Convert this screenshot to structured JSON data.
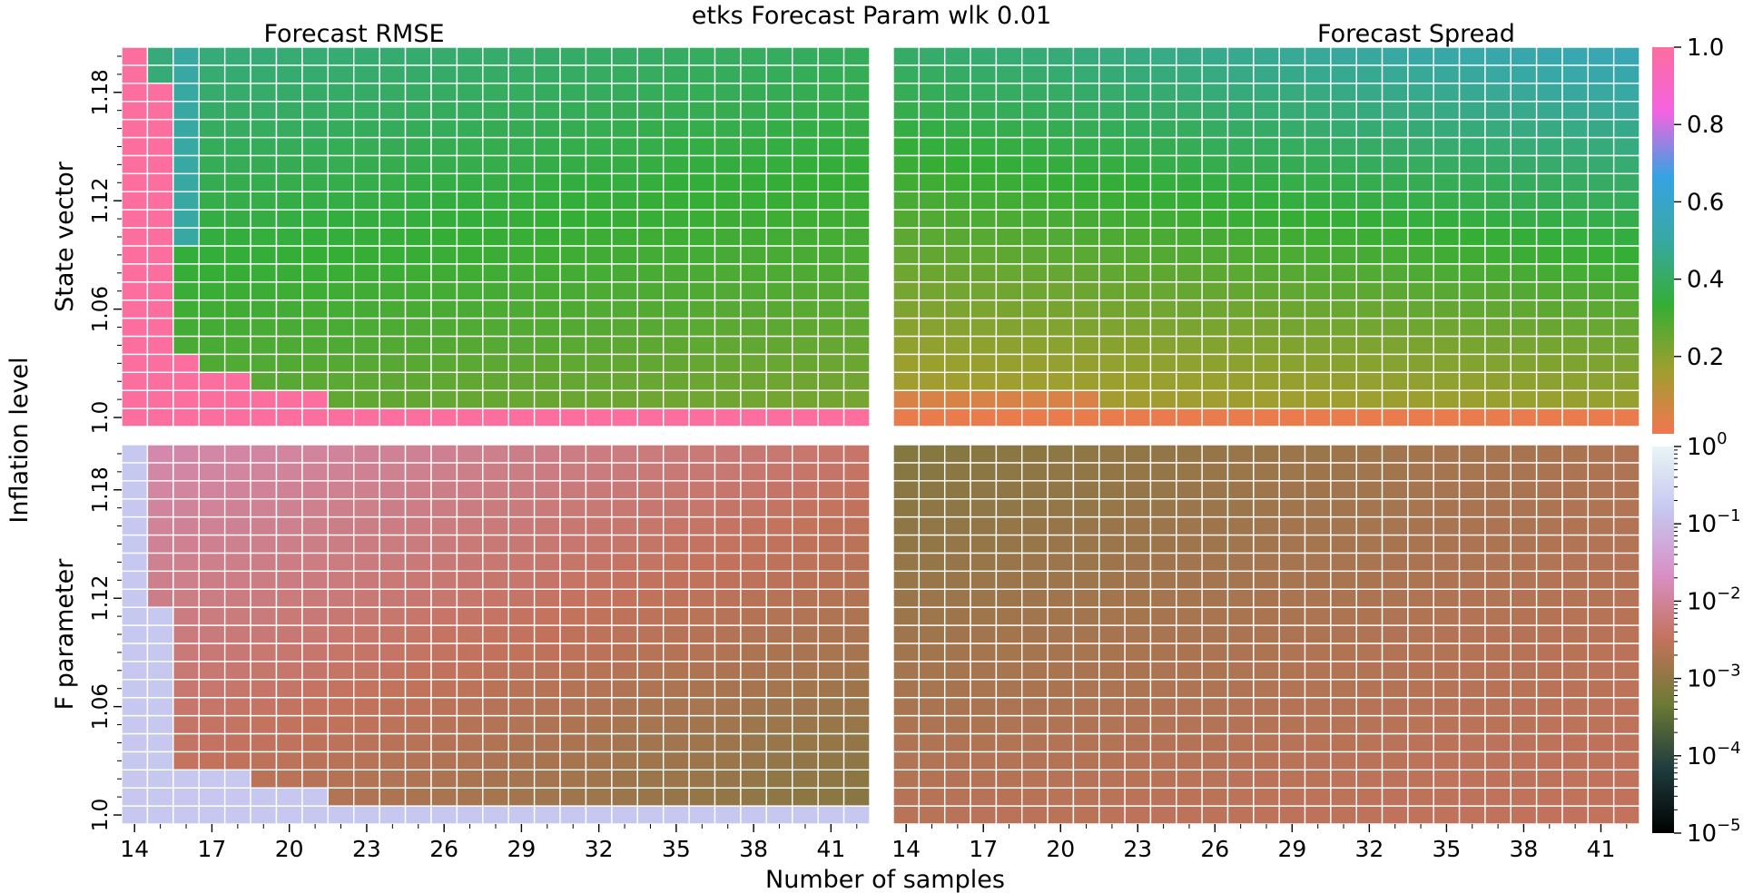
{
  "title": "etks Forecast Param wlk 0.01",
  "xlabel": "Number of samples",
  "ylabel": "Inflation level",
  "colors": {
    "grid": "#ffffff",
    "rmse_cbar_stops": [
      "#f37651",
      "#9d9f2e",
      "#34ae35",
      "#38a8a3",
      "#37a2e4",
      "#f463e0",
      "#fb6e9e"
    ],
    "logcbar_stops": [
      "#000000",
      "#1f3c3e",
      "#6c7a35",
      "#c3725c",
      "#d98fc4",
      "#c6c6f0",
      "#e8f5f5"
    ]
  },
  "chart_data": [
    {
      "type": "heatmap",
      "title": "Forecast RMSE",
      "ylabel": "State vector",
      "x": [
        14,
        15,
        16,
        17,
        18,
        19,
        20,
        21,
        22,
        23,
        24,
        25,
        26,
        27,
        28,
        29,
        30,
        31,
        32,
        33,
        34,
        35,
        36,
        37,
        38,
        39,
        40,
        41,
        42
      ],
      "xtick_labels": [
        "14",
        "17",
        "20",
        "23",
        "26",
        "29",
        "32",
        "35",
        "38",
        "41"
      ],
      "y": [
        1.0,
        1.01,
        1.02,
        1.03,
        1.04,
        1.05,
        1.06,
        1.07,
        1.08,
        1.09,
        1.1,
        1.11,
        1.12,
        1.13,
        1.14,
        1.15,
        1.16,
        1.17,
        1.18,
        1.19,
        1.2
      ],
      "ytick_labels": [
        "1.0",
        "1.06",
        "1.12",
        "1.18"
      ],
      "scale": "linear",
      "vmin": 0.0,
      "vmax": 1.0,
      "note_values": "Linear color scale; ~0.3 at low samples/low inflation, ~0.4 at high inflation; ≥1.0 in the low-sample column band."
    },
    {
      "type": "heatmap",
      "title": "Forecast Spread",
      "ylabel": "",
      "x": [
        14,
        15,
        16,
        17,
        18,
        19,
        20,
        21,
        22,
        23,
        24,
        25,
        26,
        27,
        28,
        29,
        30,
        31,
        32,
        33,
        34,
        35,
        36,
        37,
        38,
        39,
        40,
        41,
        42
      ],
      "xtick_labels": [
        "14",
        "17",
        "20",
        "23",
        "26",
        "29",
        "32",
        "35",
        "38",
        "41"
      ],
      "y": [
        1.0,
        1.01,
        1.02,
        1.03,
        1.04,
        1.05,
        1.06,
        1.07,
        1.08,
        1.09,
        1.1,
        1.11,
        1.12,
        1.13,
        1.14,
        1.15,
        1.16,
        1.17,
        1.18,
        1.19,
        1.2
      ],
      "scale": "linear",
      "vmin": 0.0,
      "vmax": 1.0
    },
    {
      "type": "heatmap",
      "title": "",
      "ylabel": "F parameter",
      "x": [
        14,
        15,
        16,
        17,
        18,
        19,
        20,
        21,
        22,
        23,
        24,
        25,
        26,
        27,
        28,
        29,
        30,
        31,
        32,
        33,
        34,
        35,
        36,
        37,
        38,
        39,
        40,
        41,
        42
      ],
      "xtick_labels": [
        "14",
        "17",
        "20",
        "23",
        "26",
        "29",
        "32",
        "35",
        "38",
        "41"
      ],
      "y": [
        1.0,
        1.01,
        1.02,
        1.03,
        1.04,
        1.05,
        1.06,
        1.07,
        1.08,
        1.09,
        1.1,
        1.11,
        1.12,
        1.13,
        1.14,
        1.15,
        1.16,
        1.17,
        1.18,
        1.19,
        1.2
      ],
      "ytick_labels": [
        "1.0",
        "1.06",
        "1.12",
        "1.18"
      ],
      "scale": "log",
      "vmin": 1e-05,
      "vmax": 1.0
    },
    {
      "type": "heatmap",
      "title": "",
      "ylabel": "",
      "x": [
        14,
        15,
        16,
        17,
        18,
        19,
        20,
        21,
        22,
        23,
        24,
        25,
        26,
        27,
        28,
        29,
        30,
        31,
        32,
        33,
        34,
        35,
        36,
        37,
        38,
        39,
        40,
        41,
        42
      ],
      "xtick_labels": [
        "14",
        "17",
        "20",
        "23",
        "26",
        "29",
        "32",
        "35",
        "38",
        "41"
      ],
      "y": [
        1.0,
        1.01,
        1.02,
        1.03,
        1.04,
        1.05,
        1.06,
        1.07,
        1.08,
        1.09,
        1.1,
        1.11,
        1.12,
        1.13,
        1.14,
        1.15,
        1.16,
        1.17,
        1.18,
        1.19,
        1.2
      ],
      "scale": "log",
      "vmin": 1e-05,
      "vmax": 1.0
    }
  ],
  "colorbars": [
    {
      "scale": "linear",
      "ticks": [
        "0.2",
        "0.4",
        "0.6",
        "0.8",
        "1.0"
      ],
      "tick_values": [
        0.2,
        0.4,
        0.6,
        0.8,
        1.0
      ],
      "vmin": 0.0,
      "vmax": 1.0
    },
    {
      "scale": "log",
      "ticks": [
        {
          "base": "10",
          "exp": "0",
          "value": 0
        },
        {
          "base": "10",
          "exp": "−1",
          "value": -1
        },
        {
          "base": "10",
          "exp": "−2",
          "value": -2
        },
        {
          "base": "10",
          "exp": "−3",
          "value": -3
        },
        {
          "base": "10",
          "exp": "−4",
          "value": -4
        },
        {
          "base": "10",
          "exp": "−5",
          "value": -5
        }
      ],
      "log_min": -5,
      "log_max": 0
    }
  ]
}
